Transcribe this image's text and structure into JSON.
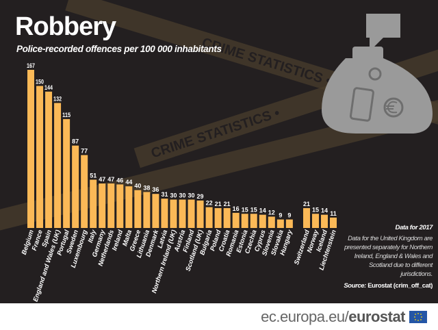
{
  "title": "Robbery",
  "subtitle": "Police-recorded offences per 100 000 inhabitants",
  "tape_text": "CRIME STATISTICS •",
  "notes": {
    "year": "Data for 2017",
    "text": "Data for the United Kingdom are presented separately for Northern Ireland, England & Wales and Scotland due to different jurisdictions.",
    "source_label": "Source:",
    "source_value": "Eurostat (crim_off_cat)"
  },
  "footer": {
    "url_prefix": "ec.europa.eu/",
    "url_brand": "eurostat"
  },
  "colors": {
    "background": "#231f20",
    "bar": "#fbb957",
    "tape": "#4a3d2c",
    "illustration": "#9a9a9a"
  },
  "chart_data": {
    "type": "bar",
    "title": "Robbery",
    "ylabel": "Police-recorded offences per 100 000 inhabitants",
    "xlabel": "",
    "ylim": [
      0,
      167
    ],
    "grid": false,
    "categories": [
      "Belgium",
      "France",
      "Spain",
      "England and Wales (UK)",
      "Portugal",
      "Sweden",
      "Luxembourg",
      "Italy",
      "Germany",
      "Netherlands",
      "Ireland",
      "Malta",
      "Greece",
      "Lithuania",
      "Denmark",
      "Latvia",
      "Northern Ireland (UK)",
      "Austria",
      "Finland",
      "Scotland (UK)",
      "Bulgaria",
      "Poland",
      "Croatia",
      "Romania",
      "Estonia",
      "Czechia",
      "Cyprus",
      "Slovenia",
      "Slovakia",
      "Hungary",
      "Switzerland",
      "Norway",
      "Iceland",
      "Liechtenstein"
    ],
    "values": [
      167,
      150,
      144,
      132,
      115,
      87,
      77,
      51,
      47,
      47,
      46,
      44,
      40,
      38,
      36,
      31,
      30,
      30,
      30,
      29,
      22,
      21,
      21,
      16,
      15,
      15,
      14,
      12,
      9,
      9,
      21,
      15,
      14,
      11
    ],
    "groups": {
      "eu_count": 30,
      "efta_count": 4
    }
  }
}
